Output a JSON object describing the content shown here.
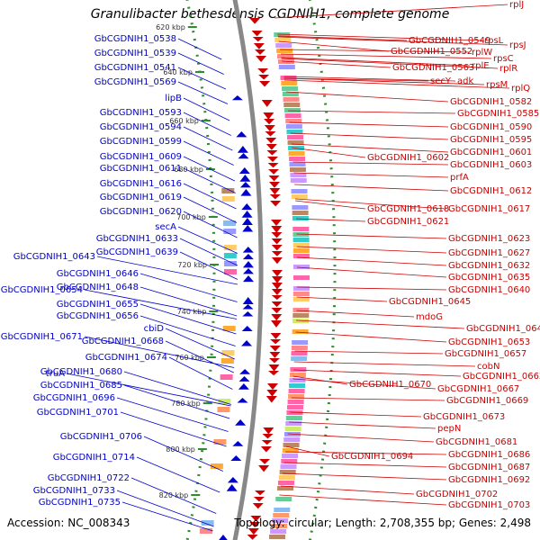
{
  "title": "Granulibacter bethesdensis CGDNIH1, complete genome",
  "footer": {
    "accession": "Accession: NC_008343",
    "summary": "Topology: circular; Length: 2,708,355 bp; Genes: 2,498"
  },
  "colors": {
    "forward": "#cc0000",
    "reverse": "#0000cc",
    "backbone": "#888888",
    "ticks": "#2e8b2e"
  },
  "scale_labels": [
    "620 kbp",
    "640 kbp",
    "660 kbp",
    "680 kbp",
    "700 kbp",
    "720 kbp",
    "740 kbp",
    "760 kbp",
    "780 kbp",
    "800 kbp",
    "820 kbp"
  ],
  "left_labels": [
    "GbCGDNIH1_0538",
    "GbCGDNIH1_0539",
    "GbCGDNIH1_0541",
    "GbCGDNIH1_0569",
    "lipB",
    "GbCGDNIH1_0593",
    "GbCGDNIH1_0594",
    "GbCGDNIH1_0599",
    "GbCGDNIH1_0609",
    "GbCGDNIH1_0611",
    "GbCGDNIH1_0616",
    "GbCGDNIH1_0619",
    "GbCGDNIH1_0620",
    "secA",
    "GbCGDNIH1_0633",
    "GbCGDNIH1_0639",
    "GbCGDNIH1_0643",
    "GbCGDNIH1_0646",
    "GbCGDNIH1_0648",
    "GbCGDNIH1_0654",
    "GbCGDNIH1_0655",
    "GbCGDNIH1_0656",
    "cbiD",
    "GbCGDNIH1_0671",
    "GbCGDNIH1_0668",
    "GbCGDNIH1_0674",
    "truA",
    "GbCGDNIH1_0680",
    "GbCGDNIH1_0685",
    "GbCGDNIH1_0696",
    "GbCGDNIH1_0701",
    "GbCGDNIH1_0706",
    "GbCGDNIH1_0714",
    "GbCGDNIH1_0722",
    "GbCGDNIH1_0733",
    "GbCGDNIH1_0735"
  ],
  "right_labels": [
    "rplJ",
    "GbCGDNIH1_0549",
    "rpsL",
    "rpsJ",
    "GbCGDNIH1_0552",
    "rplW",
    "rpsC",
    "GbCGDNIH1_0563",
    "rplE",
    "rplR",
    "secY",
    "adk",
    "rpsM",
    "rplQ",
    "GbCGDNIH1_0582",
    "GbCGDNIH1_0585",
    "GbCGDNIH1_0590",
    "GbCGDNIH1_0595",
    "GbCGDNIH1_0601",
    "GbCGDNIH1_0602",
    "GbCGDNIH1_0603",
    "prfA",
    "GbCGDNIH1_0612",
    "GbCGDNIH1_0618",
    "GbCGDNIH1_0617",
    "GbCGDNIH1_0621",
    "GbCGDNIH1_0623",
    "GbCGDNIH1_0627",
    "GbCGDNIH1_0632",
    "GbCGDNIH1_0635",
    "GbCGDNIH1_0640",
    "GbCGDNIH1_0645",
    "mdoG",
    "GbCGDNIH1_0649",
    "GbCGDNIH1_0653",
    "GbCGDNIH1_0657",
    "cobN",
    "GbCGDNIH1_0662",
    "GbCGDNIH1_0670",
    "GbCGDNIH1_0667",
    "GbCGDNIH1_0669",
    "GbCGDNIH1_0673",
    "pepN",
    "GbCGDNIH1_0681",
    "GbCGDNIH1_0694",
    "GbCGDNIH1_0686",
    "GbCGDNIH1_0687",
    "GbCGDNIH1_0692",
    "GbCGDNIH1_0702",
    "GbCGDNIH1_0703"
  ]
}
